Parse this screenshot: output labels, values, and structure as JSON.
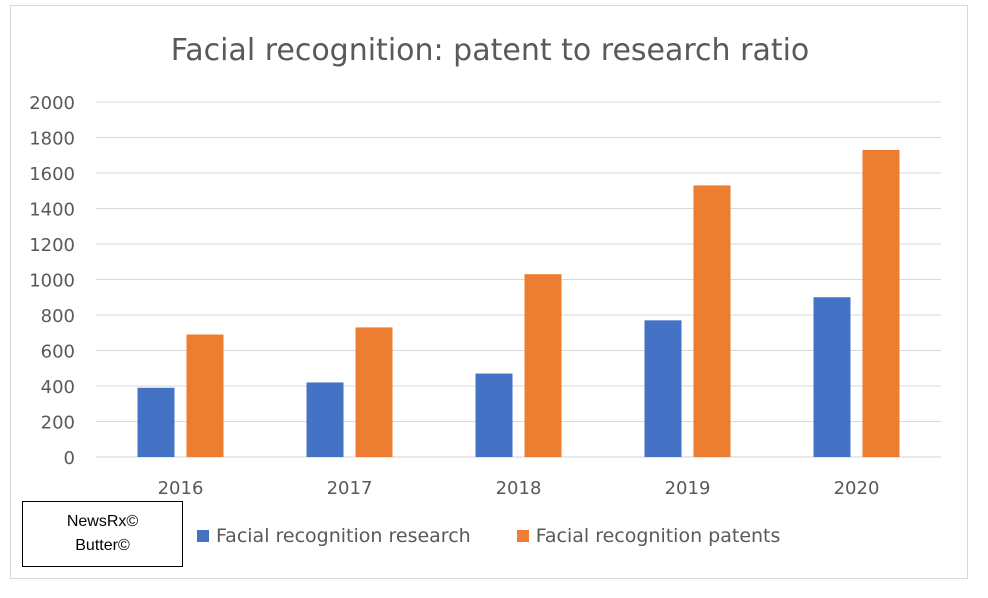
{
  "chart_data": {
    "type": "bar",
    "title": "Facial recognition: patent to research ratio",
    "xlabel": "",
    "ylabel": "",
    "categories": [
      "2016",
      "2017",
      "2018",
      "2019",
      "2020"
    ],
    "series": [
      {
        "name": "Facial recognition research",
        "color": "#4472c4",
        "values": [
          390,
          420,
          470,
          770,
          900
        ]
      },
      {
        "name": "Facial recognition patents",
        "color": "#ed7d31",
        "values": [
          690,
          730,
          1030,
          1530,
          1730
        ]
      }
    ],
    "ylim": [
      0,
      2000
    ],
    "yticks": [
      "0",
      "200",
      "400",
      "600",
      "800",
      "1000",
      "1200",
      "1400",
      "1600",
      "1800",
      "2000"
    ],
    "grid": true,
    "legend": "bottom"
  },
  "watermark": {
    "line1": "NewsRx©",
    "line2": "Butter©"
  }
}
